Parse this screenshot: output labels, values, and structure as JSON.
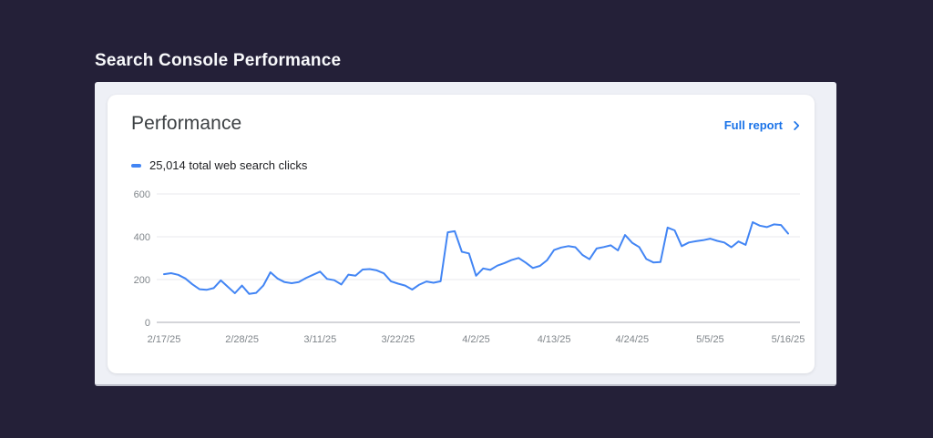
{
  "page": {
    "title": "Search Console Performance",
    "background": "#242038"
  },
  "card": {
    "title": "Performance",
    "full_report_label": "Full report",
    "legend_label": "25,014 total web search clicks"
  },
  "colors": {
    "line_blue": "#4285f4",
    "link_blue": "#1a73e8",
    "grid": "#e8eaed",
    "axis_line": "#a8abb3",
    "axis_label": "#80868b",
    "panel_bg": "#eef0f6",
    "card_bg": "#ffffff",
    "title_text": "#3c4043",
    "dark_bg": "#242038"
  },
  "chart_data": {
    "type": "line",
    "title": "25,014 total web search clicks",
    "total_clicks": 25014,
    "x_start_date": "2/17/25",
    "x_end_date": "5/16/25",
    "x_tick_labels": [
      "2/17/25",
      "2/28/25",
      "3/11/25",
      "3/22/25",
      "4/2/25",
      "4/13/25",
      "4/24/25",
      "5/5/25",
      "5/16/25"
    ],
    "x_tick_indices": [
      0,
      11,
      22,
      33,
      44,
      55,
      66,
      77,
      88
    ],
    "y_ticks": [
      600,
      400,
      200,
      0
    ],
    "ylim": [
      0,
      600
    ],
    "grid": "horizontal-only",
    "legend_position": "top-left",
    "series": [
      {
        "name": "Web search clicks",
        "color": "#4285f4",
        "values": [
          225,
          230,
          222,
          205,
          178,
          155,
          152,
          160,
          196,
          166,
          136,
          172,
          133,
          138,
          172,
          234,
          205,
          188,
          183,
          188,
          207,
          222,
          237,
          203,
          197,
          177,
          223,
          218,
          247,
          249,
          243,
          229,
          192,
          181,
          172,
          153,
          176,
          191,
          185,
          192,
          421,
          426,
          330,
          322,
          218,
          252,
          245,
          265,
          277,
          291,
          301,
          279,
          254,
          264,
          290,
          338,
          350,
          356,
          351,
          315,
          295,
          345,
          352,
          360,
          336,
          408,
          372,
          352,
          296,
          280,
          282,
          443,
          430,
          356,
          373,
          379,
          384,
          391,
          381,
          373,
          351,
          378,
          362,
          468,
          452,
          445,
          458,
          455,
          415
        ]
      }
    ]
  }
}
